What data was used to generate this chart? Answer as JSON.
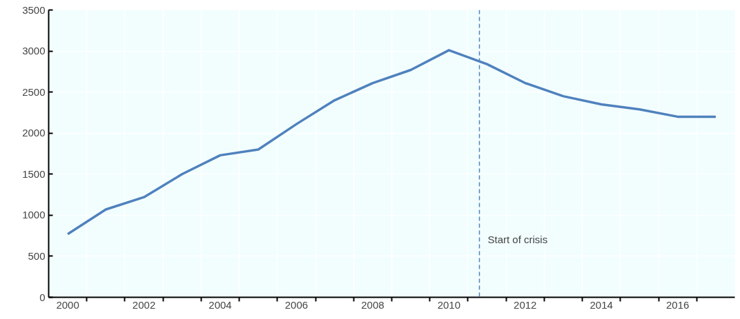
{
  "chart_data": {
    "type": "line",
    "x": [
      2000,
      2001,
      2002,
      2003,
      2004,
      2005,
      2006,
      2007,
      2008,
      2009,
      2010,
      2011,
      2012,
      2013,
      2014,
      2015,
      2016,
      2017
    ],
    "series": [
      {
        "color": "#4f81bd",
        "values": [
          770,
          1070,
          1220,
          1500,
          1730,
          1800,
          2110,
          2400,
          2610,
          2770,
          3010,
          2840,
          2610,
          2450,
          2350,
          2290,
          2200,
          2200
        ]
      }
    ],
    "xlim": [
      1999.5,
      2017.5
    ],
    "xticks": [
      2000,
      {
        "value": 2000.5,
        "label": null
      },
      {
        "value": 2001.5,
        "label": null
      },
      2002,
      {
        "value": 2002.5,
        "label": null
      },
      {
        "value": 2003.5,
        "label": null
      },
      2004,
      {
        "value": 2004.5,
        "label": null
      },
      {
        "value": 2005.5,
        "label": null
      },
      2006,
      {
        "value": 2006.5,
        "label": null
      },
      {
        "value": 2007.5,
        "label": null
      },
      2008,
      {
        "value": 2008.5,
        "label": null
      },
      {
        "value": 2009.5,
        "label": null
      },
      2010,
      {
        "value": 2010.5,
        "label": null
      },
      {
        "value": 2011.5,
        "label": null
      },
      2012,
      {
        "value": 2012.5,
        "label": null
      },
      {
        "value": 2013.5,
        "label": null
      },
      2014,
      {
        "value": 2014.5,
        "label": null
      },
      {
        "value": 2015.5,
        "label": null
      },
      2016,
      {
        "value": 2016.5,
        "label": null
      }
    ],
    "ylim": [
      0,
      3500
    ],
    "yticks": [
      0,
      500,
      1000,
      1500,
      2000,
      2500,
      3000,
      3500
    ],
    "ref_lines": [
      {
        "axis": "x",
        "value": 2010.8,
        "label": "Start of crisis",
        "color": "#4f81bd",
        "line_style": "dashed"
      }
    ],
    "grid": true,
    "marker": "none",
    "line_style": "solid"
  }
}
